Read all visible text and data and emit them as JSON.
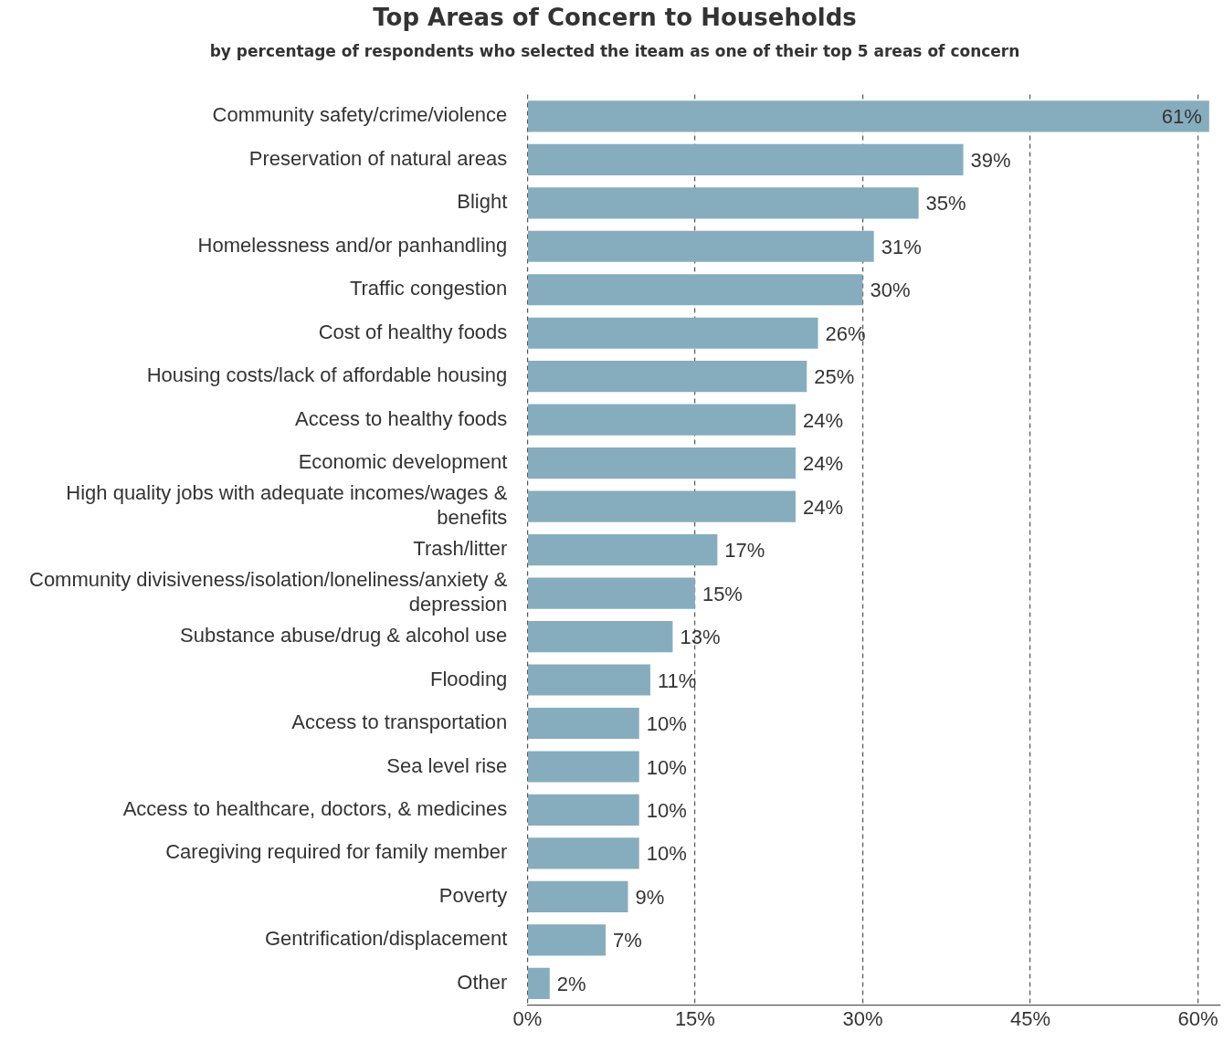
{
  "chart_data": {
    "type": "bar",
    "orientation": "horizontal",
    "title": "Top Areas of Concern to Households",
    "subtitle": "by percentage of respondents who selected the iteam as one of their top 5 areas of concern",
    "categories": [
      "Community safety/crime/violence",
      "Preservation of natural areas",
      "Blight",
      "Homelessness and/or panhandling",
      "Traffic congestion",
      "Cost of healthy foods",
      "Housing costs/lack of affordable housing",
      "Access to healthy foods",
      "Economic development",
      "High quality jobs with adequate incomes/wages & benefits",
      "Trash/litter",
      "Community divisiveness/isolation/loneliness/anxiety & depression",
      "Substance abuse/drug & alcohol use",
      "Flooding",
      "Access to transportation",
      "Sea level rise",
      "Access to healthcare, doctors, & medicines",
      "Caregiving required for family member",
      "Poverty",
      "Gentrification/displacement",
      "Other"
    ],
    "values": [
      61,
      39,
      35,
      31,
      30,
      26,
      25,
      24,
      24,
      24,
      17,
      15,
      13,
      11,
      10,
      10,
      10,
      10,
      9,
      7,
      2
    ],
    "color": "#86adbd",
    "value_labels": [
      "61%",
      "39%",
      "35%",
      "31%",
      "30%",
      "26%",
      "25%",
      "24%",
      "24%",
      "24%",
      "17%",
      "15%",
      "13%",
      "11%",
      "10%",
      "10%",
      "10%",
      "10%",
      "9%",
      "7%",
      "2%"
    ],
    "xlim": [
      0,
      62
    ],
    "xticks": [
      {
        "value": 0,
        "label": "0%"
      },
      {
        "value": 15,
        "label": "15%"
      },
      {
        "value": 30,
        "label": "30%"
      },
      {
        "value": 45,
        "label": "45%"
      },
      {
        "value": 60,
        "label": "60%"
      }
    ],
    "grid": "x",
    "legend": false
  }
}
